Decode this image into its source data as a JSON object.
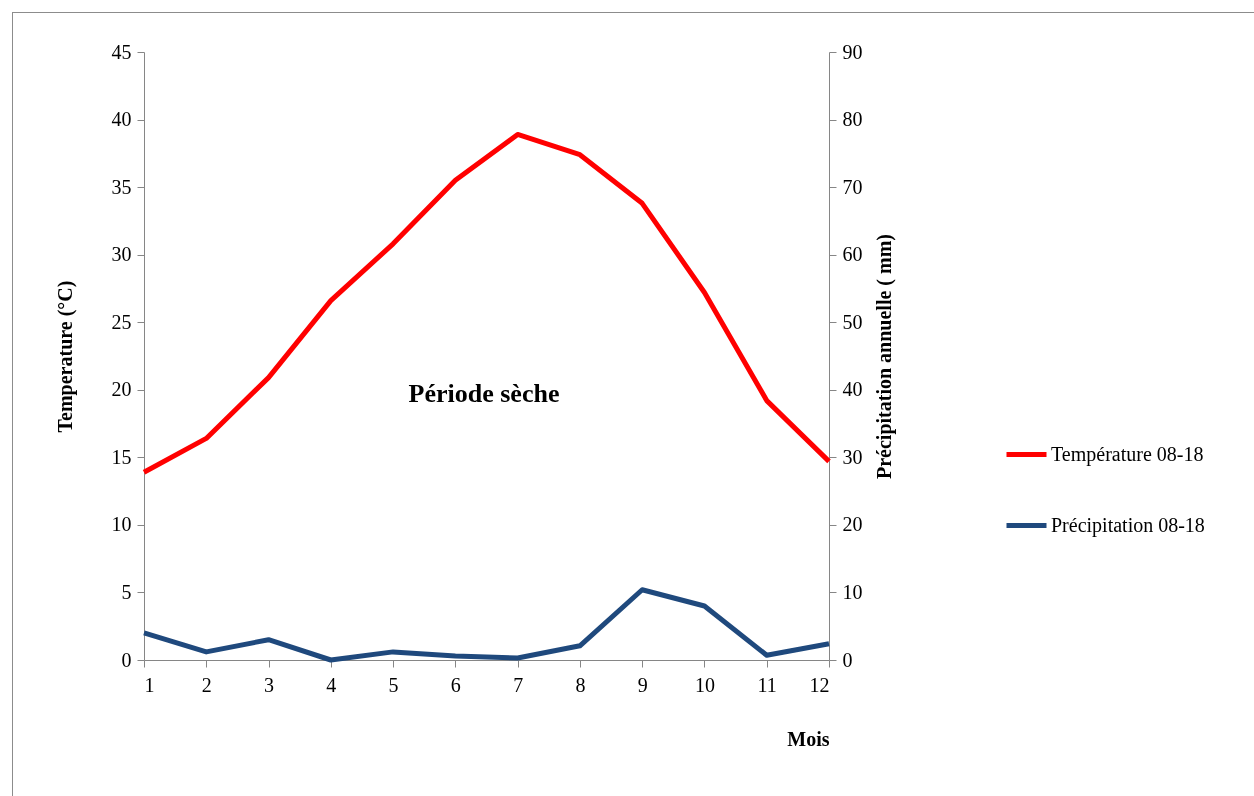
{
  "chart_data": {
    "type": "line",
    "xlabel": "Mois",
    "ylabel": "Temperature (°C)",
    "y2label": "Précipitation  annuelle ( mm)",
    "x": [
      1,
      2,
      3,
      4,
      5,
      6,
      7,
      8,
      9,
      10,
      11,
      12
    ],
    "xlim": [
      1,
      12
    ],
    "xticks": [
      1,
      2,
      3,
      4,
      5,
      6,
      7,
      8,
      9,
      10,
      11,
      12
    ],
    "ylim": [
      0,
      45
    ],
    "yticks": [
      0,
      5,
      10,
      15,
      20,
      25,
      30,
      35,
      40,
      45
    ],
    "y2lim": [
      0,
      90
    ],
    "y2ticks": [
      0,
      10,
      20,
      30,
      40,
      50,
      60,
      70,
      80,
      90
    ],
    "grid": false,
    "legend": "right",
    "annotations": [
      "Période sèche"
    ],
    "series": [
      {
        "name": "Température 08-18",
        "color": "#ff0000",
        "values": [
          13.9,
          16.4,
          20.9,
          26.6,
          30.8,
          35.5,
          38.9,
          37.4,
          33.8,
          27.2,
          19.2,
          14.7
        ]
      },
      {
        "name": "Précipitation 08-18",
        "color": "#1f497d",
        "axis": "y2",
        "values": [
          4.0,
          1.2,
          3.0,
          0,
          1.2,
          0.6,
          0.3,
          2.1,
          10.4,
          8.0,
          0.7,
          2.4
        ]
      }
    ]
  }
}
